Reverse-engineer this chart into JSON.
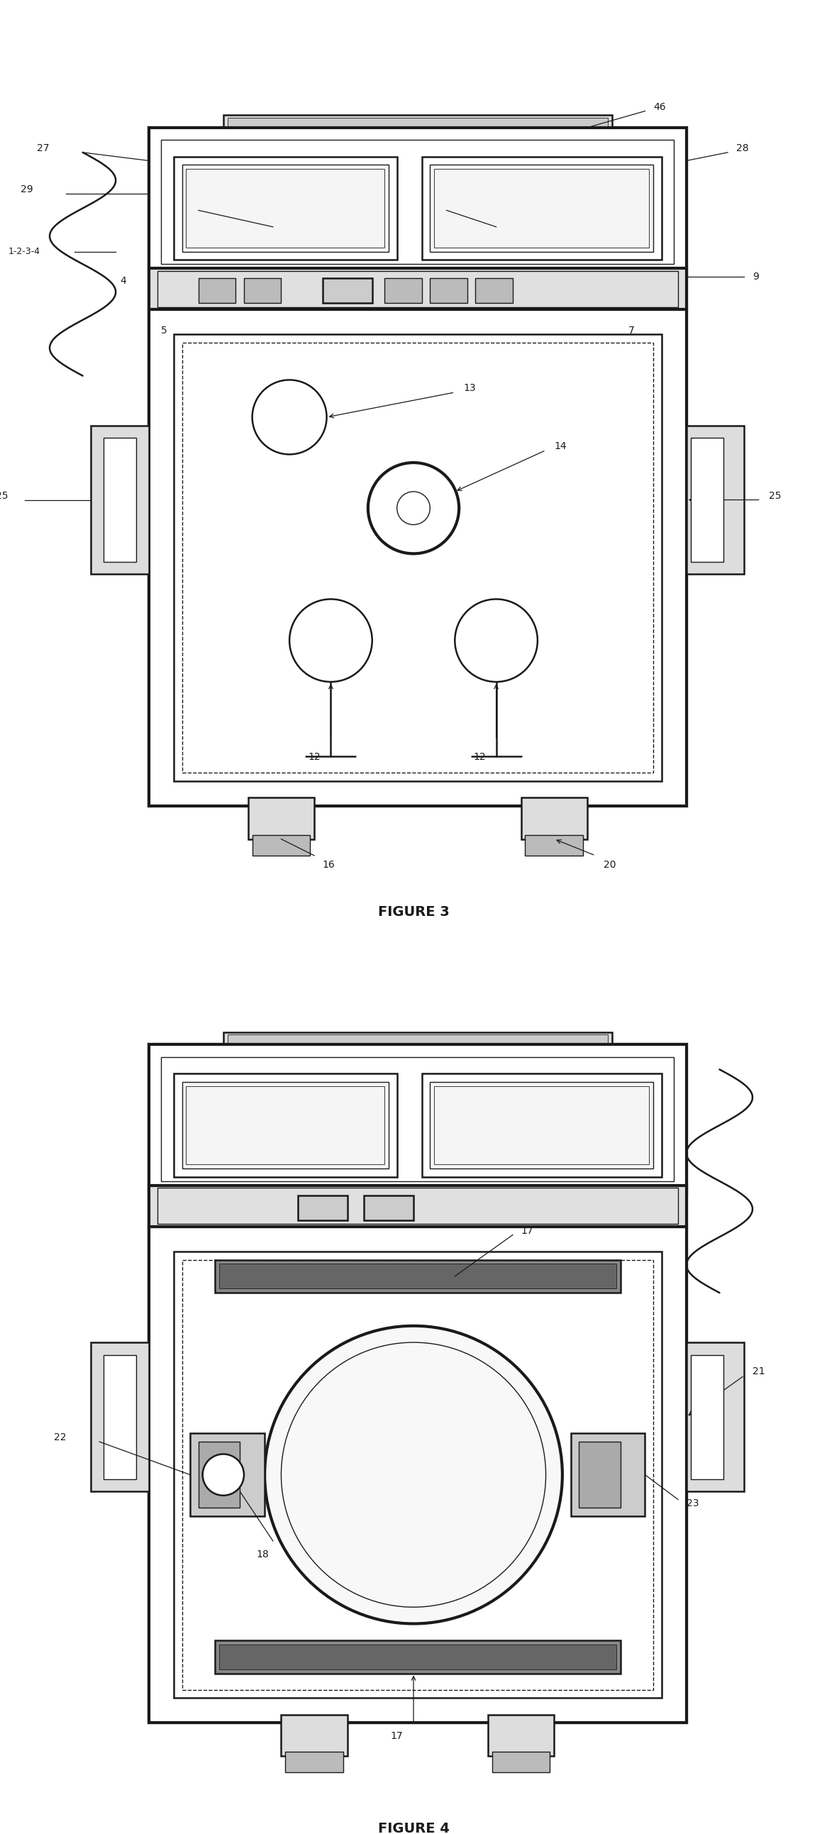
{
  "bg_color": "#ffffff",
  "line_color": "#1a1a1a",
  "fig_width": 11.66,
  "fig_height": 25.85,
  "figure3_title": "FIGURE 3",
  "figure4_title": "FIGURE 4",
  "lw_thick": 3.0,
  "lw_med": 1.8,
  "lw_thin": 1.0,
  "lw_hair": 0.6,
  "font_size": 10,
  "font_size_title": 14
}
